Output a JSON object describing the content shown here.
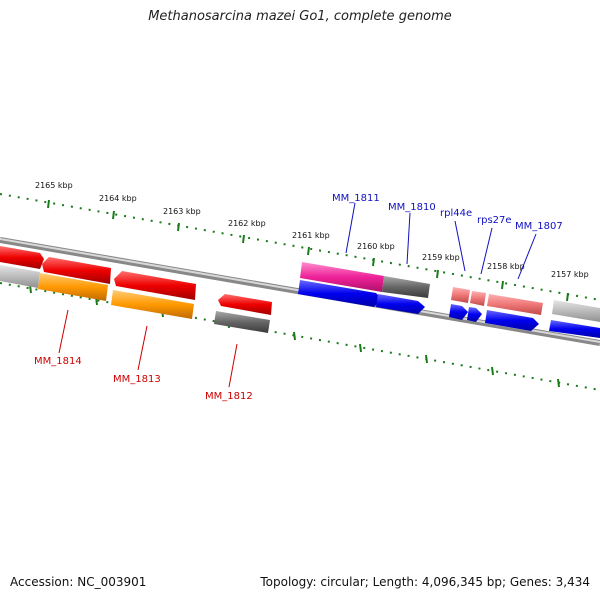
{
  "title": "Methanosarcina mazei Go1, complete genome",
  "kbp_labels": [
    "2165 kbp",
    "2164 kbp",
    "2163 kbp",
    "2162 kbp",
    "2161 kbp",
    "2160 kbp",
    "2159 kbp",
    "2158 kbp",
    "2157 kbp"
  ],
  "genes_forward": [
    "MM_1811",
    "MM_1810",
    "rpl44e",
    "rps27e",
    "MM_1807"
  ],
  "genes_reverse": [
    "MM_1814",
    "MM_1813",
    "MM_1812"
  ],
  "footer": {
    "accession": "Accession: NC_003901",
    "topology": "Topology: circular; Length: 4,096,345 bp; Genes: 3,434"
  },
  "colors": {
    "backbone": "#8a8a8a",
    "ticks": "#1a7a1a",
    "forward_cds": "#1010ee",
    "reverse_cds": "#ee0000",
    "magenta": "#ee2299",
    "orange": "#ff9900",
    "gray": "#707070",
    "light_gray": "#bbbbbb",
    "salmon": "#ee7777",
    "forward_label": "#1010c0",
    "reverse_label": "#cc0000"
  }
}
